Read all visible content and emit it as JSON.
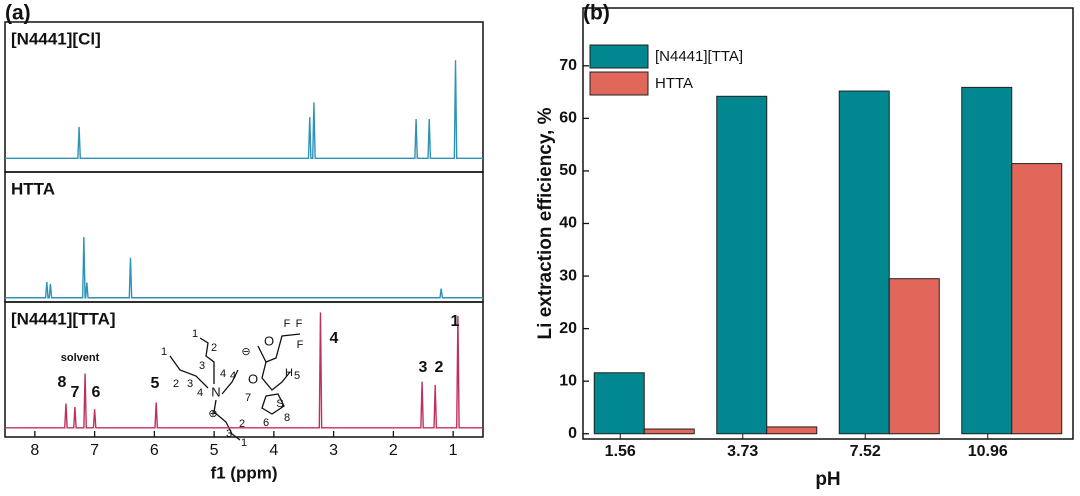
{
  "chart_data": [
    {
      "type": "line",
      "panel_label": "(a)",
      "xlabel": "f1 (ppm)",
      "xlim": [
        8.5,
        0.5
      ],
      "xticks": [
        8,
        7,
        6,
        5,
        4,
        3,
        2,
        1
      ],
      "series": [
        {
          "name": "[N4441][Cl]",
          "color": "#2f93b8",
          "ylim": [
            -0.14,
            1.39
          ],
          "x": [
            8.5,
            7.28,
            7.26,
            7.24,
            3.42,
            3.4,
            3.38,
            3.35,
            3.33,
            3.31,
            1.64,
            1.62,
            1.6,
            1.42,
            1.4,
            1.38,
            0.98,
            0.96,
            0.94,
            0.5
          ],
          "values": [
            0,
            0,
            0.32,
            0,
            0,
            0.42,
            0,
            0,
            0.57,
            0,
            0,
            0.4,
            0,
            0,
            0.4,
            0,
            0,
            1.0,
            0,
            0
          ]
        },
        {
          "name": "HTTA",
          "color": "#2f93b8",
          "ylim": [
            -0.07,
            2.07
          ],
          "x": [
            8.5,
            7.82,
            7.8,
            7.78,
            7.76,
            7.74,
            7.72,
            7.2,
            7.18,
            7.16,
            7.15,
            7.13,
            7.11,
            6.42,
            6.4,
            6.38,
            1.22,
            1.2,
            1.18,
            0.5
          ],
          "values": [
            0,
            0,
            0.26,
            0,
            0,
            0.23,
            0,
            0,
            1.0,
            0,
            0,
            0.25,
            0,
            0,
            0.66,
            0,
            0,
            0.15,
            0,
            0
          ]
        },
        {
          "name": "[N4441][TTA]",
          "color": "#c0305c",
          "ylim": [
            -0.08,
            1.09
          ],
          "x": [
            8.5,
            7.5,
            7.48,
            7.46,
            7.35,
            7.33,
            7.31,
            7.18,
            7.16,
            7.14,
            7.02,
            7.0,
            6.98,
            5.99,
            5.97,
            5.95,
            3.24,
            3.22,
            3.2,
            1.54,
            1.52,
            1.5,
            1.32,
            1.3,
            1.28,
            0.94,
            0.92,
            0.9,
            0.5
          ],
          "values": [
            0,
            0,
            0.21,
            0,
            0,
            0.18,
            0,
            0,
            0.47,
            0,
            0,
            0.16,
            0,
            0,
            0.22,
            0,
            0,
            1.0,
            0,
            0,
            0.4,
            0,
            0,
            0.37,
            0,
            0,
            0.97,
            0,
            0
          ]
        }
      ],
      "annotations": [
        "8",
        "7",
        "solvent",
        "6",
        "5",
        "4",
        "3",
        "2",
        "1"
      ],
      "structure_labels": [
        "1",
        "2",
        "3",
        "4",
        "1",
        "2",
        "3",
        "4",
        "N",
        "4",
        "⊕",
        "2",
        "3",
        "1",
        "⊖",
        "O",
        "F",
        "F",
        "F",
        "O",
        "H",
        "5",
        "7",
        "S",
        "6",
        "8"
      ]
    },
    {
      "type": "bar",
      "panel_label": "(b)",
      "xlabel": "pH",
      "ylabel": "Li extraction efficiency, %",
      "legend": "upper left",
      "categories": [
        "1.56",
        "3.73",
        "7.52",
        "10.96"
      ],
      "series": [
        {
          "name": "[N4441][TTA]",
          "color": "#00878f",
          "values": [
            11.6,
            64.2,
            65.2,
            65.9
          ]
        },
        {
          "name": "HTTA",
          "color": "#e0675a",
          "values": [
            0.9,
            1.3,
            29.5,
            51.4
          ]
        }
      ],
      "ylim": [
        -1,
        81
      ],
      "yticks": [
        0,
        10,
        20,
        30,
        40,
        50,
        60,
        70
      ]
    }
  ]
}
